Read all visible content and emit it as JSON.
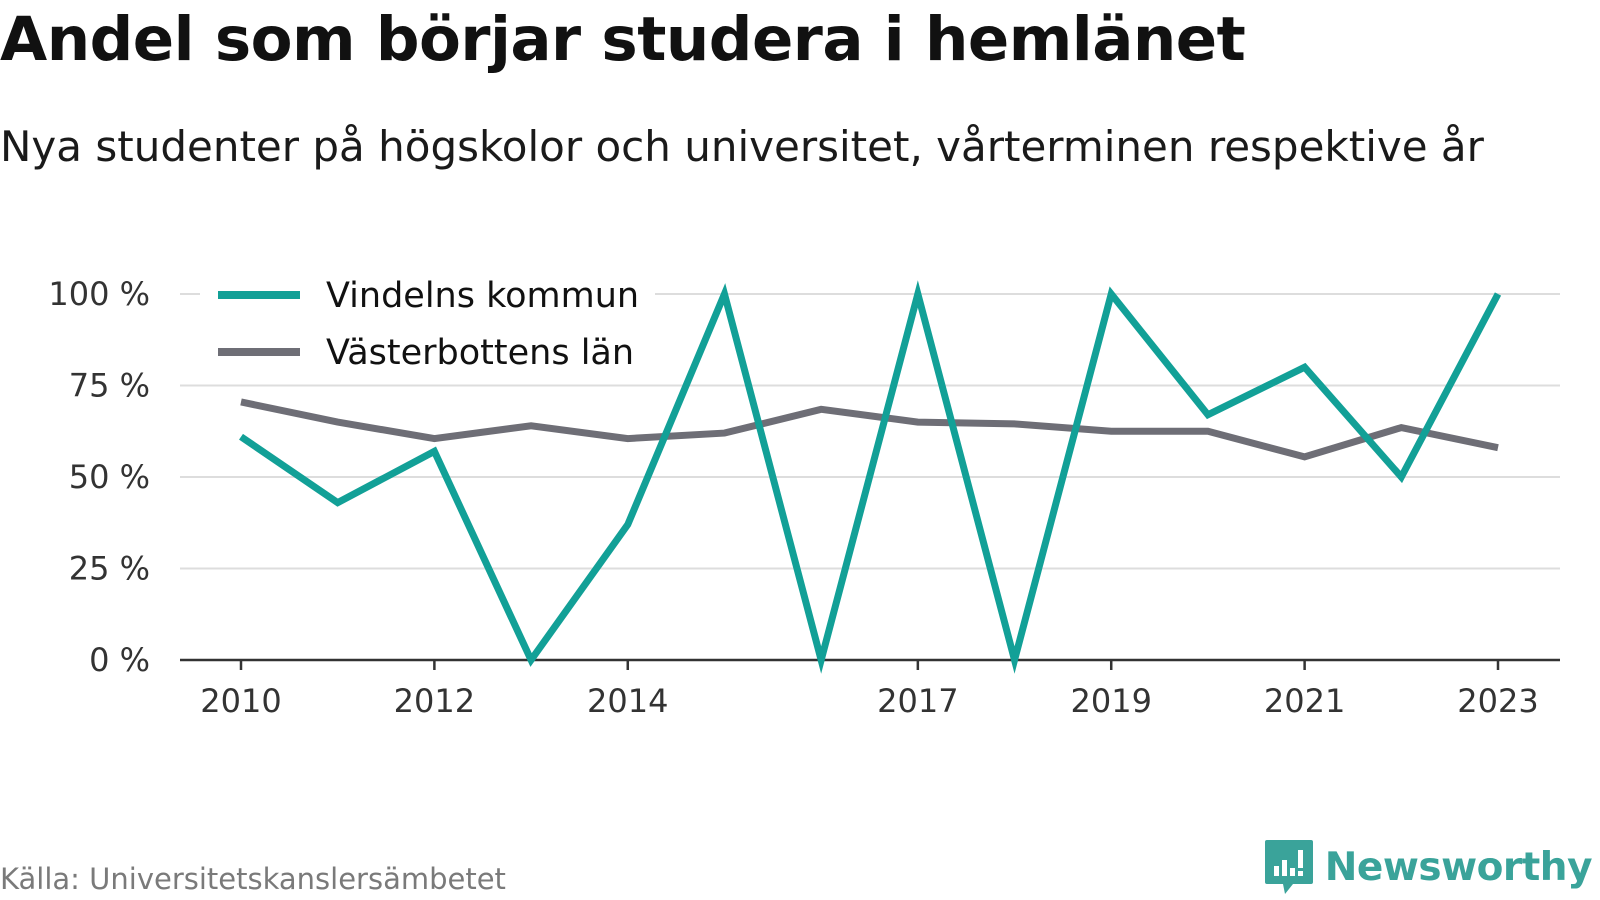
{
  "title": "Andel som börjar studera i hemlänet",
  "subtitle": "Nya studenter på högskolor och universitet, vårterminen respektive år",
  "source": "Källa: Universitetskanslersämbetet",
  "brand": "Newsworthy",
  "colors": {
    "accent": "#12a097",
    "secondary": "#6e6e76",
    "brand": "#3aa39a"
  },
  "chart_data": {
    "type": "line",
    "title": "Andel som börjar studera i hemlänet",
    "subtitle": "Nya studenter på högskolor och universitet, vårterminen respektive år",
    "x": [
      2010,
      2011,
      2012,
      2013,
      2014,
      2015,
      2016,
      2017,
      2018,
      2019,
      2020,
      2021,
      2022,
      2023
    ],
    "x_tick_labels": [
      "2010",
      "2012",
      "2014",
      "2017",
      "2019",
      "2021",
      "2023"
    ],
    "y_tick_labels": [
      "0 %",
      "25 %",
      "50 %",
      "75 %",
      "100 %"
    ],
    "ylim": [
      0,
      100
    ],
    "grid": true,
    "legend_position": "top-left",
    "series": [
      {
        "name": "Vindelns kommun",
        "color": "#12a097",
        "values": [
          61,
          43,
          57,
          0,
          37,
          100,
          0,
          100,
          0,
          100,
          67,
          80,
          50,
          100
        ]
      },
      {
        "name": "Västerbottens län",
        "color": "#6e6e76",
        "values": [
          70.5,
          65,
          60.5,
          64,
          60.5,
          62,
          68.5,
          65,
          64.5,
          62.5,
          62.5,
          55.5,
          63.5,
          58
        ]
      }
    ]
  }
}
